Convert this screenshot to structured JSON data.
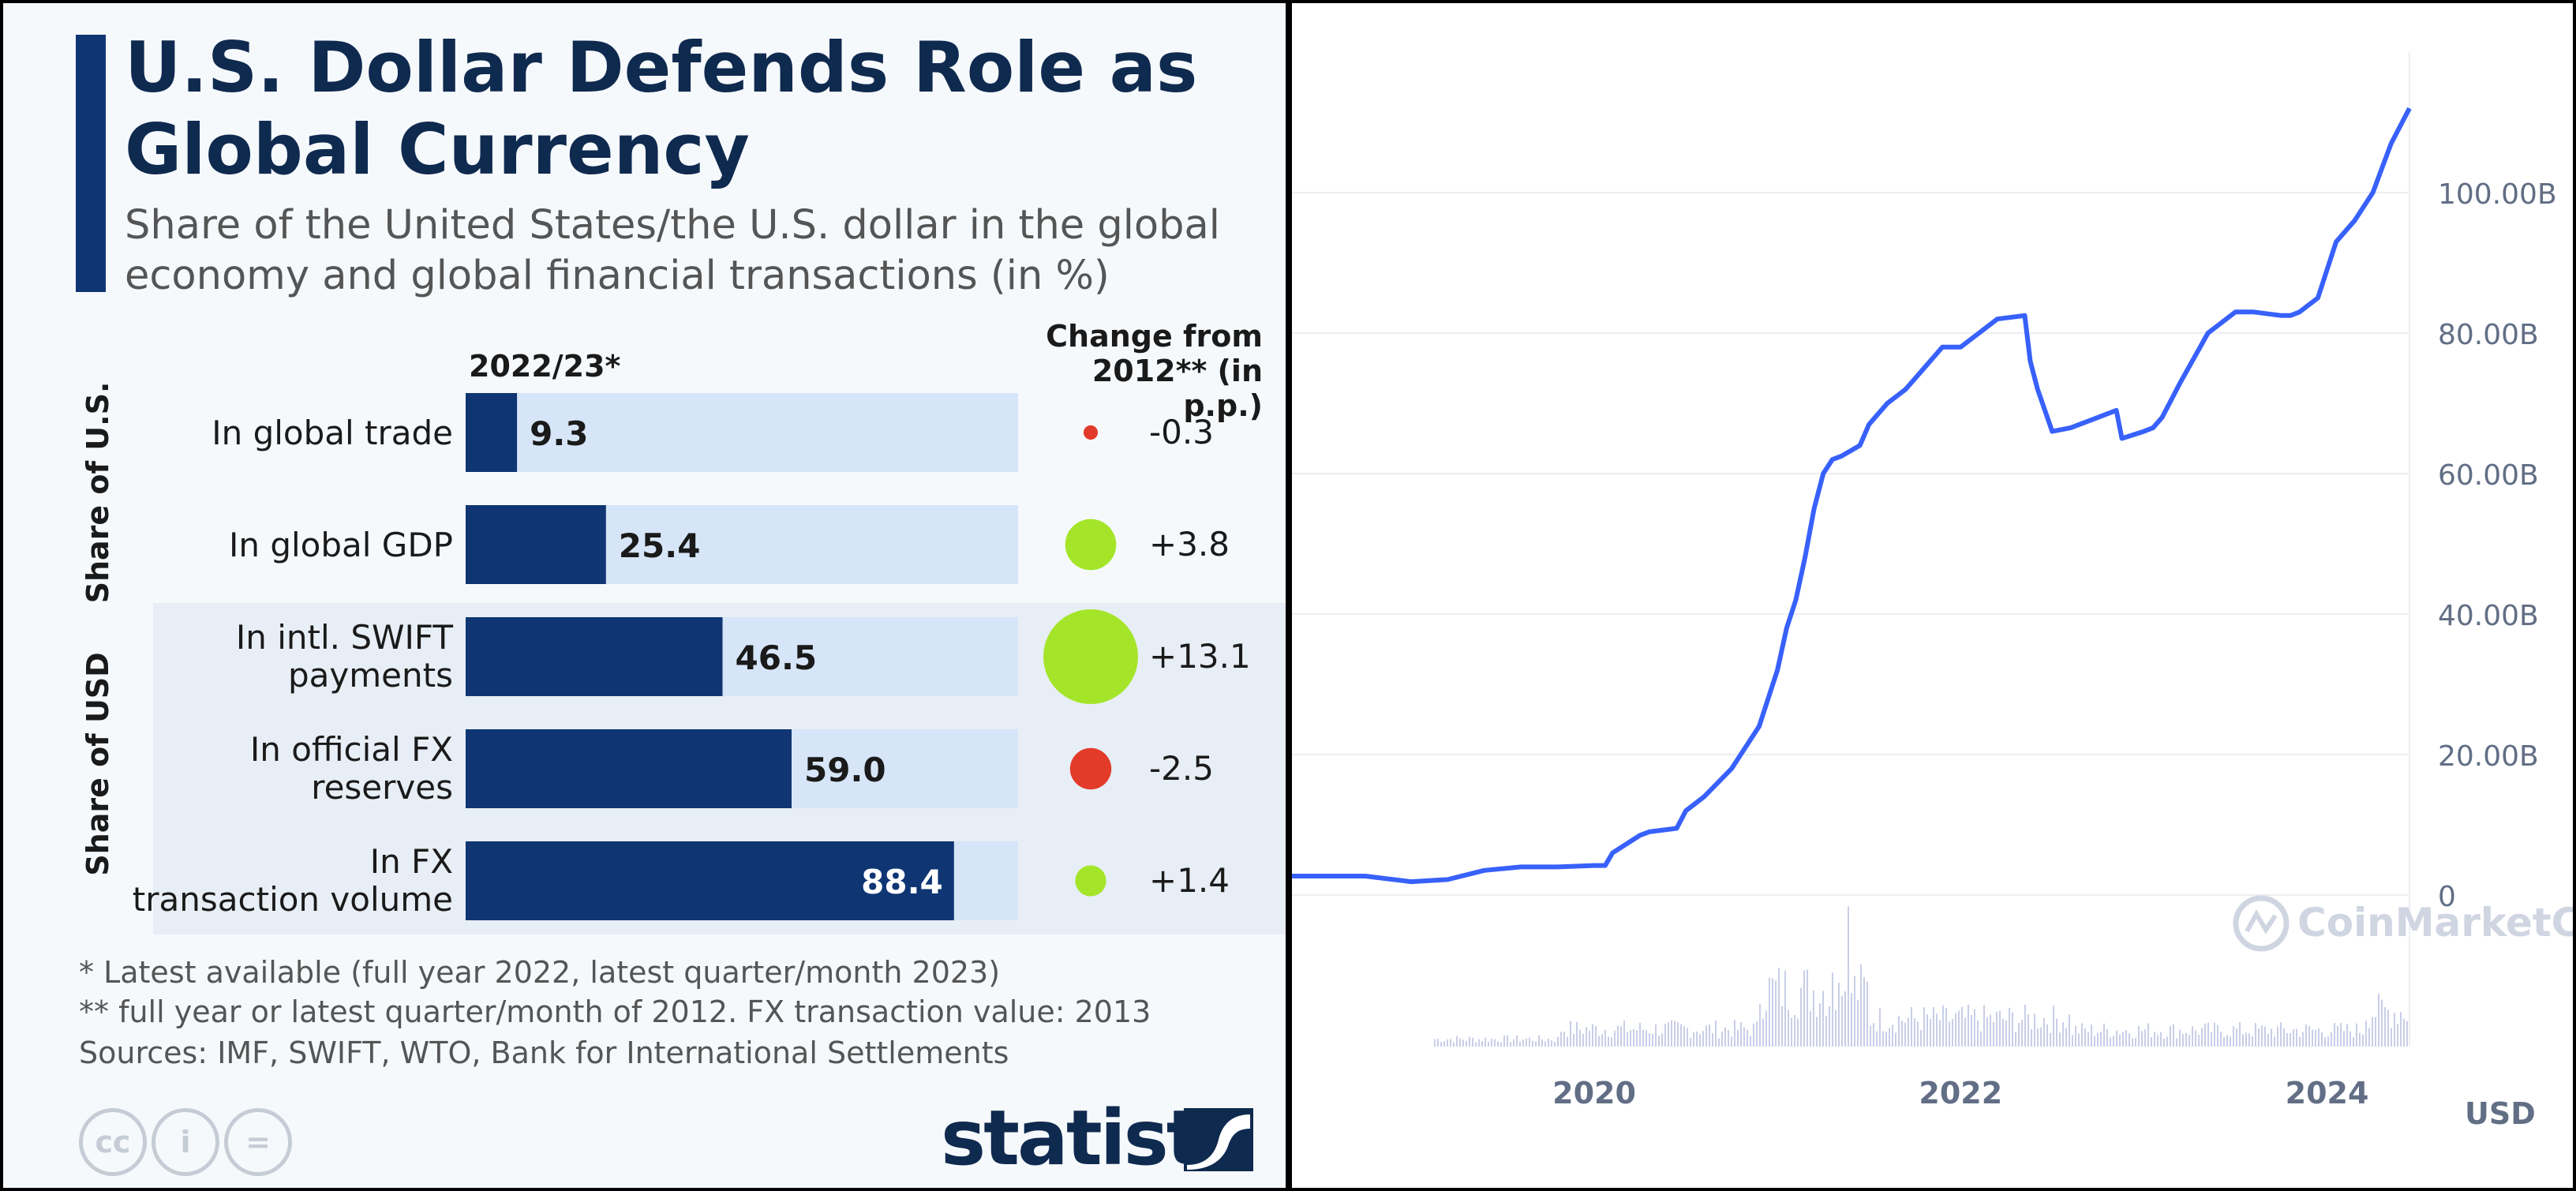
{
  "left_panel": {
    "title": "U.S. Dollar Defends Role as Global Currency",
    "subtitle": "Share of the United States/the U.S. dollar in the global economy and global financial transactions (in %)",
    "col_header_bars": "2022/23*",
    "col_header_change": "Change from 2012** (in p.p.)",
    "group_labels": [
      "Share of U.S.",
      "Share of USD"
    ],
    "footnotes": [
      "*   Latest available (full year 2022, latest quarter/month 2023)",
      "** full year or latest quarter/month of 2012. FX transaction value: 2013",
      "Sources: IMF, SWIFT, WTO, Bank for International Settlements"
    ],
    "brand": "statista",
    "cc_icons": [
      "cc-icon",
      "by-person-icon",
      "nd-equals-icon"
    ]
  },
  "chart_data": [
    {
      "type": "bar",
      "orientation": "horizontal",
      "title": "U.S. Dollar Defends Role as Global Currency",
      "subtitle": "Share of the United States/the U.S. dollar in the global economy and global financial transactions (in %)",
      "categories": [
        "In global trade",
        "In global GDP",
        "In intl. SWIFT payments",
        "In official FX reserves",
        "In FX transaction volume"
      ],
      "groups": [
        "Share of U.S.",
        "Share of U.S.",
        "Share of USD",
        "Share of USD",
        "Share of USD"
      ],
      "series": [
        {
          "name": "2022/23*",
          "values": [
            9.3,
            25.4,
            46.5,
            59.0,
            88.4
          ],
          "color": "#0f3573"
        },
        {
          "name": "Change from 2012** (in p.p.)",
          "values": [
            -0.3,
            3.8,
            13.1,
            -2.5,
            1.4
          ],
          "positive_color": "#a4e52a",
          "negative_color": "#e33b2a"
        }
      ],
      "value_labels": [
        "9.3",
        "25.4",
        "46.5",
        "59.0",
        "88.4"
      ],
      "change_labels": [
        "-0.3",
        "+3.8",
        "+13.1",
        "-2.5",
        "+1.4"
      ],
      "xlim": [
        0,
        100
      ],
      "track_color": "#d6e5f7"
    },
    {
      "type": "line",
      "title": "",
      "xlabel": "",
      "ylabel": "",
      "y_unit_label": "USD",
      "watermark": "CoinMarketCap",
      "x_ticks": [
        "2020",
        "2022",
        "2024"
      ],
      "y_ticks": [
        "0",
        "20.00B",
        "40.00B",
        "60.00B",
        "80.00B",
        "100.00B"
      ],
      "ylim": [
        0,
        120
      ],
      "y_units": "billions USD",
      "xlim": [
        2018.35,
        2024.45
      ],
      "grid": true,
      "line_color": "#3861fb",
      "series": [
        {
          "x": [
            2018.35,
            2018.6,
            2018.75,
            2019.0,
            2019.2,
            2019.4,
            2019.6,
            2019.8,
            2020.0,
            2020.06,
            2020.1,
            2020.25,
            2020.3,
            2020.45,
            2020.5,
            2020.6,
            2020.75,
            2020.8,
            2020.9,
            2021.0,
            2021.05,
            2021.1,
            2021.15,
            2021.2,
            2021.25,
            2021.3,
            2021.35,
            2021.45,
            2021.5,
            2021.6,
            2021.7,
            2021.8,
            2021.9,
            2022.0,
            2022.1,
            2022.2,
            2022.35,
            2022.38,
            2022.42,
            2022.5,
            2022.6,
            2022.75,
            2022.85,
            2022.88,
            2023.0,
            2023.05,
            2023.1,
            2023.2,
            2023.35,
            2023.5,
            2023.6,
            2023.75,
            2023.8,
            2023.85,
            2023.95,
            2024.05,
            2024.15,
            2024.25,
            2024.35,
            2024.45
          ],
          "y": [
            2.7,
            2.7,
            2.7,
            1.9,
            2.2,
            3.5,
            4.0,
            4.0,
            4.2,
            4.2,
            6.0,
            8.5,
            9.0,
            9.5,
            12.0,
            14.0,
            18.0,
            20.0,
            24.0,
            32.0,
            38.0,
            42.0,
            48.0,
            55.0,
            60.0,
            62.0,
            62.5,
            64.0,
            67.0,
            70.0,
            72.0,
            75.0,
            78.0,
            78.0,
            80.0,
            82.0,
            82.5,
            76.0,
            72.0,
            66.0,
            66.5,
            68.0,
            69.0,
            65.0,
            66.0,
            66.5,
            68.0,
            73.0,
            80.0,
            83.0,
            83.0,
            82.5,
            82.5,
            83.0,
            85.0,
            93.0,
            96.0,
            100.0,
            107.0,
            112.0
          ]
        }
      ],
      "volume_bars": true,
      "volume_color": "#c9cee8"
    }
  ]
}
